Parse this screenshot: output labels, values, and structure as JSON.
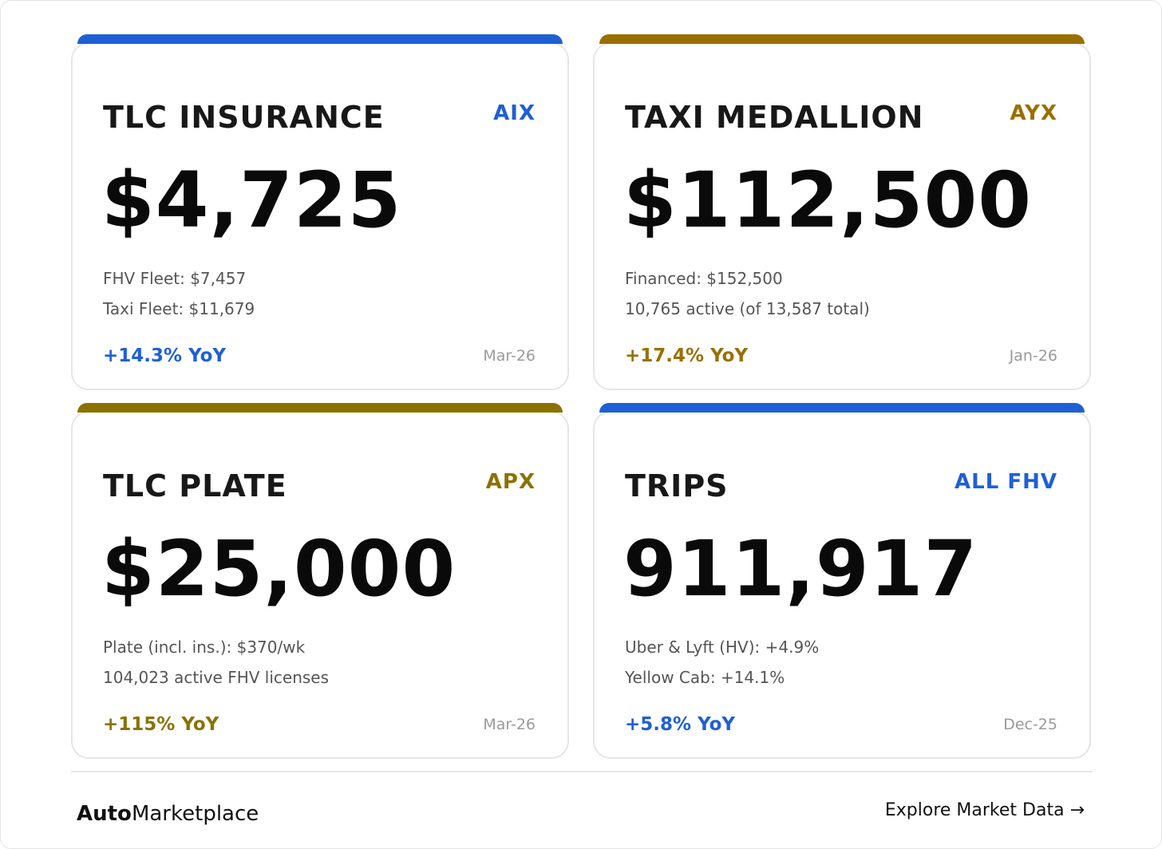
{
  "colors": {
    "blue": "#1f5fd6",
    "gold": "#9a6f00",
    "olive": "#8a7200"
  },
  "cards": [
    {
      "title": "TLC INSURANCE",
      "tag": "AIX",
      "value": "$4,725",
      "line1": "FHV Fleet: $7,457",
      "line2": "Taxi Fleet: $11,679",
      "yoy": "+14.3% YoY",
      "date": "Mar-26",
      "accent": "#1f5fd6"
    },
    {
      "title": "TAXI MEDALLION",
      "tag": "AYX",
      "value": "$112,500",
      "line1": "Financed: $152,500",
      "line2": "10,765 active (of 13,587 total)",
      "yoy": "+17.4% YoY",
      "date": "Jan-26",
      "accent": "#9a6f00"
    },
    {
      "title": "TLC PLATE",
      "tag": "APX",
      "value": "$25,000",
      "line1": "Plate (incl. ins.): $370/wk",
      "line2": "104,023 active FHV licenses",
      "yoy": "+115% YoY",
      "date": "Mar-26",
      "accent": "#8a7200"
    },
    {
      "title": "TRIPS",
      "tag": "ALL FHV",
      "value": "911,917",
      "line1": "Uber & Lyft (HV): +4.9%",
      "line2": "Yellow Cab: +14.1%",
      "yoy": "+5.8% YoY",
      "date": "Dec-25",
      "accent": "#1f5fd6"
    }
  ],
  "footer": {
    "brand_bold": "Auto",
    "brand_regular": "Marketplace",
    "explore_link": "Explore Market Data →"
  }
}
